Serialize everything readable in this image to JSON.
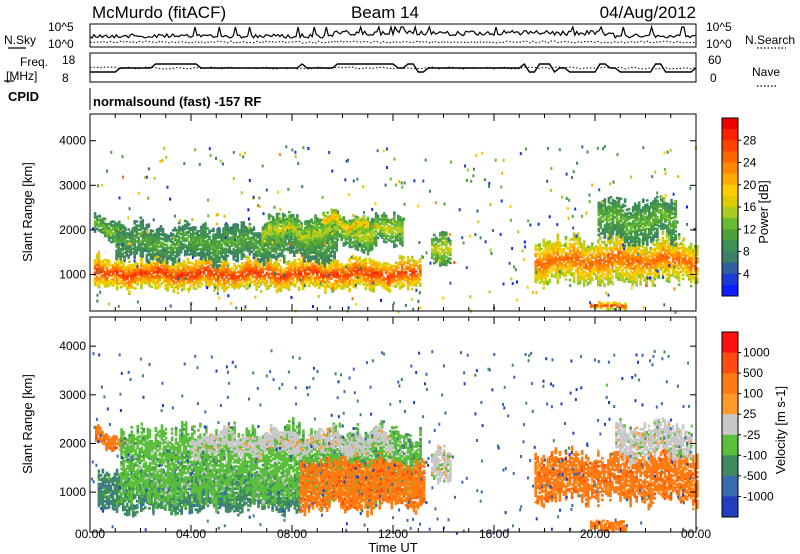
{
  "header": {
    "title": "McMurdo (fitACF)",
    "beam": "Beam 14",
    "date": "04/Aug/2012"
  },
  "noise_panel": {
    "left_label": "N.Sky",
    "right_label": "N.Search",
    "left_ticks": [
      "10^5",
      "10^0"
    ],
    "right_ticks": [
      "10^5",
      "10^0"
    ]
  },
  "freq_panel": {
    "left_label_1": "Freq.",
    "left_label_2": "[MHz]",
    "right_label": "Nave",
    "left_ticks": [
      "18",
      "8"
    ],
    "right_ticks": [
      "60",
      "0"
    ]
  },
  "cpid_panel": {
    "label": "CPID",
    "text": "normalsound (fast) -157 RF"
  },
  "chart_data": [
    {
      "type": "heatmap",
      "panel": "power",
      "ylabel": "Slant Range [km]",
      "xlabel": "Time UT",
      "xlim": [
        0,
        24
      ],
      "ylim": [
        180,
        4600
      ],
      "x_ticks": [
        "00:00",
        "04:00",
        "08:00",
        "12:00",
        "16:00",
        "20:00",
        "00:00"
      ],
      "y_ticks": [
        "1000",
        "2000",
        "3000",
        "4000"
      ],
      "colorbar": {
        "label": "Power [dB]",
        "ticks": [
          "28",
          "24",
          "20",
          "16",
          "12",
          "8",
          "4"
        ],
        "range": [
          0,
          30
        ],
        "colors": [
          "#0a1eff",
          "#1a3ad8",
          "#2f5f9c",
          "#3f7f6a",
          "#3e8f54",
          "#4ea03c",
          "#66bb33",
          "#aacc22",
          "#ddcc00",
          "#ffcc00",
          "#ffaa00",
          "#ff8800",
          "#ff6600",
          "#ff4400",
          "#ff2200",
          "#ee0000"
        ]
      },
      "bands": [
        {
          "t0": 0.15,
          "t1": 13.1,
          "r_center": 1000,
          "r_halfwidth": 300,
          "level": 27
        },
        {
          "t0": 0.15,
          "t1": 1.4,
          "r_center": 2000,
          "r_halfwidth": 200,
          "level": 13
        },
        {
          "t0": 1.0,
          "t1": 9.8,
          "r_center": 1700,
          "r_halfwidth": 350,
          "level": 11
        },
        {
          "t0": 6.8,
          "t1": 12.4,
          "r_center": 1950,
          "r_halfwidth": 300,
          "level": 15
        },
        {
          "t0": 9.2,
          "t1": 11.0,
          "r_center": 2150,
          "r_halfwidth": 150,
          "level": 20
        },
        {
          "t0": 13.5,
          "t1": 14.3,
          "r_center": 1600,
          "r_halfwidth": 300,
          "level": 16
        },
        {
          "t0": 17.6,
          "t1": 24.0,
          "r_center": 1300,
          "r_halfwidth": 450,
          "level": 24
        },
        {
          "t0": 20.1,
          "t1": 23.2,
          "r_center": 2200,
          "r_halfwidth": 400,
          "level": 12
        },
        {
          "t0": 19.8,
          "t1": 21.2,
          "r_center": 280,
          "r_halfwidth": 60,
          "level": 27
        }
      ]
    },
    {
      "type": "heatmap",
      "panel": "velocity",
      "ylabel": "Slant Range [km]",
      "xlabel": "Time UT",
      "xlim": [
        0,
        24
      ],
      "ylim": [
        180,
        4600
      ],
      "x_ticks": [
        "00:00",
        "04:00",
        "08:00",
        "12:00",
        "16:00",
        "20:00",
        "00:00"
      ],
      "y_ticks": [
        "1000",
        "2000",
        "3000",
        "4000"
      ],
      "colorbar": {
        "label": "Velocity [m s-1]",
        "ticks": [
          "1000",
          "500",
          "100",
          "25",
          "-25",
          "-100",
          "-500",
          "-1000"
        ],
        "colors": [
          "#1f3fbf",
          "#3a6ab0",
          "#3f8a60",
          "#5abf3a",
          "#c8c8c8",
          "#ff9a2a",
          "#ff7a10",
          "#ff4a10",
          "#ff1010"
        ]
      },
      "bands": [
        {
          "t0": 0.3,
          "t1": 8.3,
          "r_center": 1000,
          "r_halfwidth": 350,
          "level": 2
        },
        {
          "t0": 0.2,
          "t1": 1.6,
          "r_center": 2050,
          "r_halfwidth": 130,
          "level": 6
        },
        {
          "t0": 1.2,
          "t1": 13.1,
          "r_center": 1550,
          "r_halfwidth": 650,
          "level": 3
        },
        {
          "t0": 8.3,
          "t1": 13.2,
          "r_center": 1150,
          "r_halfwidth": 450,
          "level": 6
        },
        {
          "t0": 4.0,
          "t1": 12.0,
          "r_center": 2000,
          "r_halfwidth": 180,
          "level": 4
        },
        {
          "t0": 13.5,
          "t1": 14.3,
          "r_center": 1600,
          "r_halfwidth": 300,
          "level": 4
        },
        {
          "t0": 17.6,
          "t1": 24.0,
          "r_center": 1300,
          "r_halfwidth": 450,
          "level": 6
        },
        {
          "t0": 20.8,
          "t1": 23.8,
          "r_center": 2050,
          "r_halfwidth": 300,
          "level": 4
        },
        {
          "t0": 19.8,
          "t1": 21.2,
          "r_center": 300,
          "r_halfwidth": 80,
          "level": 6
        }
      ]
    }
  ]
}
